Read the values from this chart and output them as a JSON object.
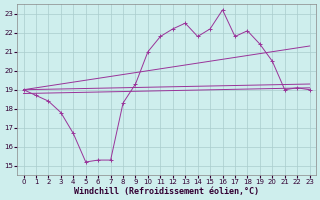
{
  "xlabel": "Windchill (Refroidissement éolien,°C)",
  "background_color": "#ceeeed",
  "grid_color": "#aacccc",
  "line_color": "#993399",
  "xlim": [
    -0.5,
    23.5
  ],
  "ylim": [
    14.5,
    23.5
  ],
  "xticks": [
    0,
    1,
    2,
    3,
    4,
    5,
    6,
    7,
    8,
    9,
    10,
    11,
    12,
    13,
    14,
    15,
    16,
    17,
    18,
    19,
    20,
    21,
    22,
    23
  ],
  "yticks": [
    15,
    16,
    17,
    18,
    19,
    20,
    21,
    22,
    23
  ],
  "series1_x": [
    0,
    1,
    2,
    3,
    4,
    5,
    6,
    7,
    8,
    9,
    10,
    11,
    12,
    13,
    14,
    15,
    16,
    17,
    18,
    19,
    20,
    21,
    22,
    23
  ],
  "series1_y": [
    19.0,
    18.7,
    18.4,
    17.8,
    16.7,
    15.2,
    15.3,
    15.3,
    18.3,
    19.3,
    21.0,
    21.8,
    22.2,
    22.5,
    21.8,
    22.2,
    23.2,
    21.8,
    22.1,
    21.4,
    20.5,
    19.0,
    19.1,
    19.0
  ],
  "line2_x": [
    0,
    23
  ],
  "line2_y": [
    19.0,
    19.3
  ],
  "line3_x": [
    0,
    23
  ],
  "line3_y": [
    19.0,
    21.3
  ],
  "line4_x": [
    0,
    23
  ],
  "line4_y": [
    18.8,
    19.1
  ],
  "tick_fontsize": 5,
  "xlabel_fontsize": 6
}
